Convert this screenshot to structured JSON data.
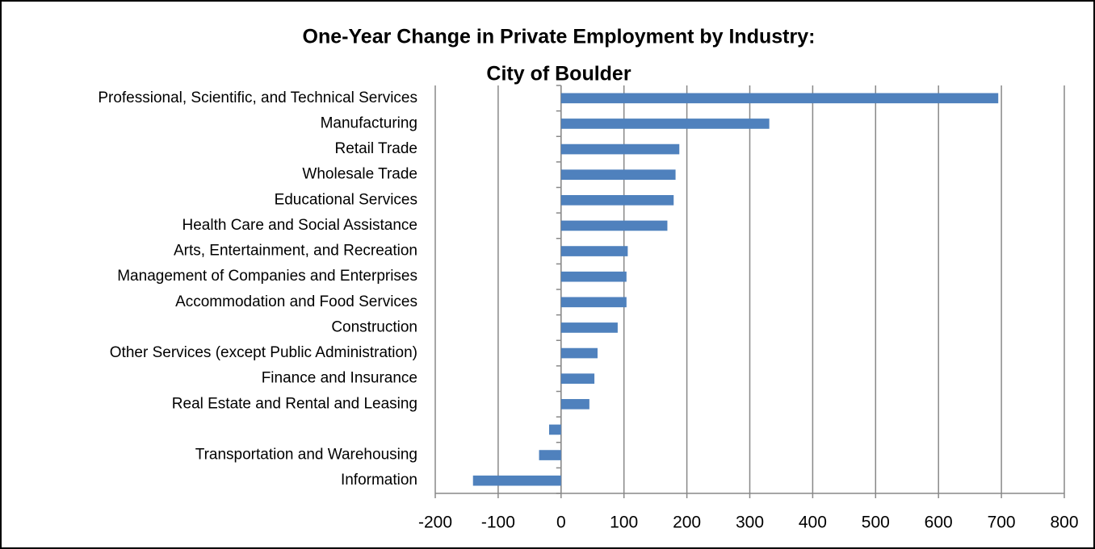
{
  "chart_data": {
    "type": "barh",
    "title": [
      "One-Year Change in Private Employment by Industry:",
      "City of Boulder"
    ],
    "categories": [
      "Professional, Scientific, and Technical Services",
      "Manufacturing",
      "Retail Trade",
      "Wholesale Trade",
      "Educational Services",
      "Health Care and Social Assistance",
      "Arts, Entertainment, and Recreation",
      "Management of Companies and Enterprises",
      "Accommodation and Food Services",
      "Construction",
      "Other Services (except Public Administration)",
      "Finance and Insurance",
      "Real Estate and Rental and Leasing",
      null,
      "Transportation and Warehousing",
      "Information"
    ],
    "values": [
      695,
      331,
      188,
      182,
      179,
      169,
      106,
      104,
      104,
      90,
      58,
      53,
      45,
      -19,
      -35,
      -140
    ],
    "color": "#4f81bd",
    "xlim": [
      -200,
      800
    ],
    "xticks": [
      -200,
      -100,
      0,
      100,
      200,
      300,
      400,
      500,
      600,
      700,
      800
    ],
    "grid": true
  }
}
